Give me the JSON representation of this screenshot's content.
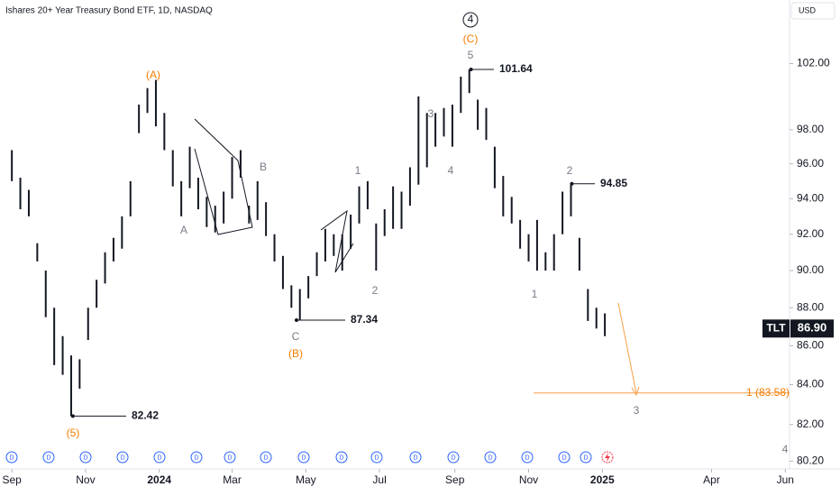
{
  "chart_data": {
    "type": "range_bar",
    "title": "Ishares 20+ Year Treasury Bond ETF, 1D, NASDAQ",
    "currency": "USD",
    "log_scale": true,
    "color": "#131722",
    "ylim": [
      80,
      106
    ],
    "yticks": [
      {
        "value": 80.2,
        "label": "80.20"
      },
      {
        "value": 82,
        "label": "82.00"
      },
      {
        "value": 84,
        "label": "84.00"
      },
      {
        "value": 86,
        "label": "86.00"
      },
      {
        "value": 88,
        "label": "88.00"
      },
      {
        "value": 90,
        "label": "90.00"
      },
      {
        "value": 92,
        "label": "92.00"
      },
      {
        "value": 94,
        "label": "94.00"
      },
      {
        "value": 96,
        "label": "96.00"
      },
      {
        "value": 98,
        "label": "98.00"
      },
      {
        "value": 102,
        "label": "102.00"
      }
    ],
    "xlim": [
      -1.4,
      91.8
    ],
    "xticks": [
      {
        "value": 0,
        "label": "Sep"
      },
      {
        "value": 8.7,
        "label": "Nov"
      },
      {
        "value": 17.4,
        "label": "2024"
      },
      {
        "value": 26,
        "label": "Mar"
      },
      {
        "value": 34.7,
        "label": "May"
      },
      {
        "value": 43.4,
        "label": "Jul"
      },
      {
        "value": 52.3,
        "label": "Sep"
      },
      {
        "value": 61,
        "label": "Nov"
      },
      {
        "value": 69.7,
        "label": "2025"
      },
      {
        "value": 82.6,
        "label": "Apr"
      },
      {
        "value": 91.3,
        "label": "Jun"
      }
    ],
    "high": [
      96.8,
      95.2,
      94.5,
      91.5,
      90,
      88,
      86.5,
      85.5,
      85.3,
      88,
      89.5,
      91,
      91.8,
      93,
      95,
      99.5,
      100.5,
      101,
      99,
      96.8,
      95,
      97,
      95.2,
      94.1,
      93.6,
      94.4,
      96.4,
      96.8,
      93.6,
      95,
      93.8,
      92,
      90.8,
      89.2,
      89,
      89.7,
      91,
      92.3,
      92,
      92,
      93.1,
      94.7,
      95,
      92.6,
      93.4,
      94.7,
      94.4,
      95.8,
      100,
      99,
      99,
      99.3,
      99.5,
      101.2,
      101.64,
      99.8,
      99.3,
      97,
      95.3,
      94.1,
      92.8,
      92,
      92.8,
      91,
      92,
      94.4,
      94.85,
      91.8,
      89,
      88,
      87.7
    ],
    "low": [
      95,
      93.4,
      93,
      90.5,
      87.5,
      85,
      84.5,
      82.42,
      83.8,
      86.3,
      88,
      89.3,
      90.5,
      91.2,
      93,
      97.8,
      99,
      98.2,
      96.8,
      94.7,
      93,
      94.6,
      93.4,
      92.4,
      92.1,
      92.6,
      94,
      95.2,
      92.6,
      92.8,
      91.9,
      90.5,
      89,
      88,
      87.34,
      88.5,
      89.7,
      90.5,
      90.8,
      90,
      91.2,
      92.6,
      93.4,
      90,
      91.9,
      92.3,
      92.3,
      93.6,
      94.8,
      95.8,
      97,
      97.6,
      97,
      99,
      100.2,
      98,
      97.4,
      94.6,
      93,
      92.6,
      91.2,
      90.5,
      90,
      90,
      90,
      92,
      93,
      90,
      87.3,
      86.9,
      86.5
    ],
    "price_labels": [
      82.42,
      87.34,
      94.85,
      101.64
    ],
    "target": {
      "label": "1 (83.58)",
      "value": 83.58
    },
    "last": {
      "symbol": "TLT",
      "value": 86.9,
      "value_label": "86.90"
    },
    "annotations": [
      {
        "text": "4",
        "color": "#131722"
      },
      {
        "text": "(C)",
        "color": "#f57c00"
      },
      {
        "text": "5",
        "color": "#787b86"
      },
      {
        "text": "(A)",
        "color": "#f57c00"
      },
      {
        "text": "B",
        "color": "#787b86"
      },
      {
        "text": "A",
        "color": "#787b86"
      },
      {
        "text": "C",
        "color": "#787b86"
      },
      {
        "text": "(B)",
        "color": "#f57c00"
      },
      {
        "text": "(5)",
        "color": "#f57c00"
      },
      {
        "text": "1",
        "color": "#787b86"
      },
      {
        "text": "2",
        "color": "#787b86"
      },
      {
        "text": "3",
        "color": "#787b86"
      },
      {
        "text": "4",
        "color": "#787b86"
      },
      {
        "text": "2",
        "color": "#787b86"
      },
      {
        "text": "1",
        "color": "#787b86"
      },
      {
        "text": "3",
        "color": "#787b86"
      },
      {
        "text": "4",
        "color": "#787b86"
      }
    ],
    "event_marker": "D"
  }
}
